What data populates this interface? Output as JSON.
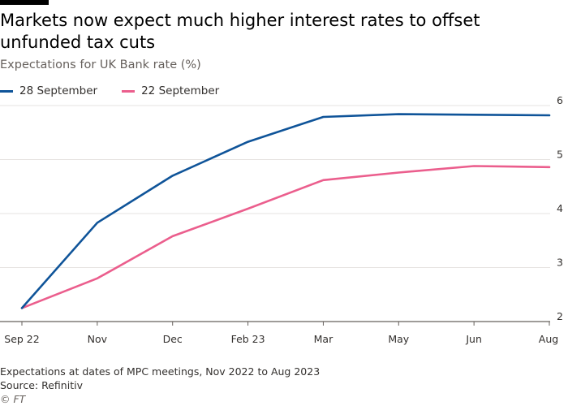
{
  "title": "Markets now expect much higher interest rates to offset unfunded tax cuts",
  "subtitle": "Expectations for UK Bank rate (%)",
  "footnote": "Expectations at dates of MPC meetings, Nov 2022 to Aug 2023",
  "source": "Source: Refinitiv",
  "copyright": "© FT",
  "chart_data": {
    "type": "line",
    "title": "Markets now expect much higher interest rates to offset unfunded tax cuts",
    "subtitle": "Expectations for UK Bank rate (%)",
    "xlabel": "",
    "ylabel": "",
    "categories": [
      "Sep 22",
      "Nov",
      "Dec",
      "Feb 23",
      "Mar",
      "May",
      "Jun",
      "Aug"
    ],
    "ylim": [
      2,
      6
    ],
    "yticks": [
      2,
      3,
      4,
      5,
      6
    ],
    "grid": true,
    "legend": "top-left",
    "series": [
      {
        "name": "28 September",
        "color": "#0f5499",
        "values": [
          2.25,
          3.83,
          4.7,
          5.33,
          5.79,
          5.84,
          5.83,
          5.82
        ]
      },
      {
        "name": "22 September",
        "color": "#eb5e8d",
        "values": [
          2.25,
          2.8,
          3.58,
          4.09,
          4.62,
          4.76,
          4.88,
          4.86
        ]
      }
    ]
  }
}
